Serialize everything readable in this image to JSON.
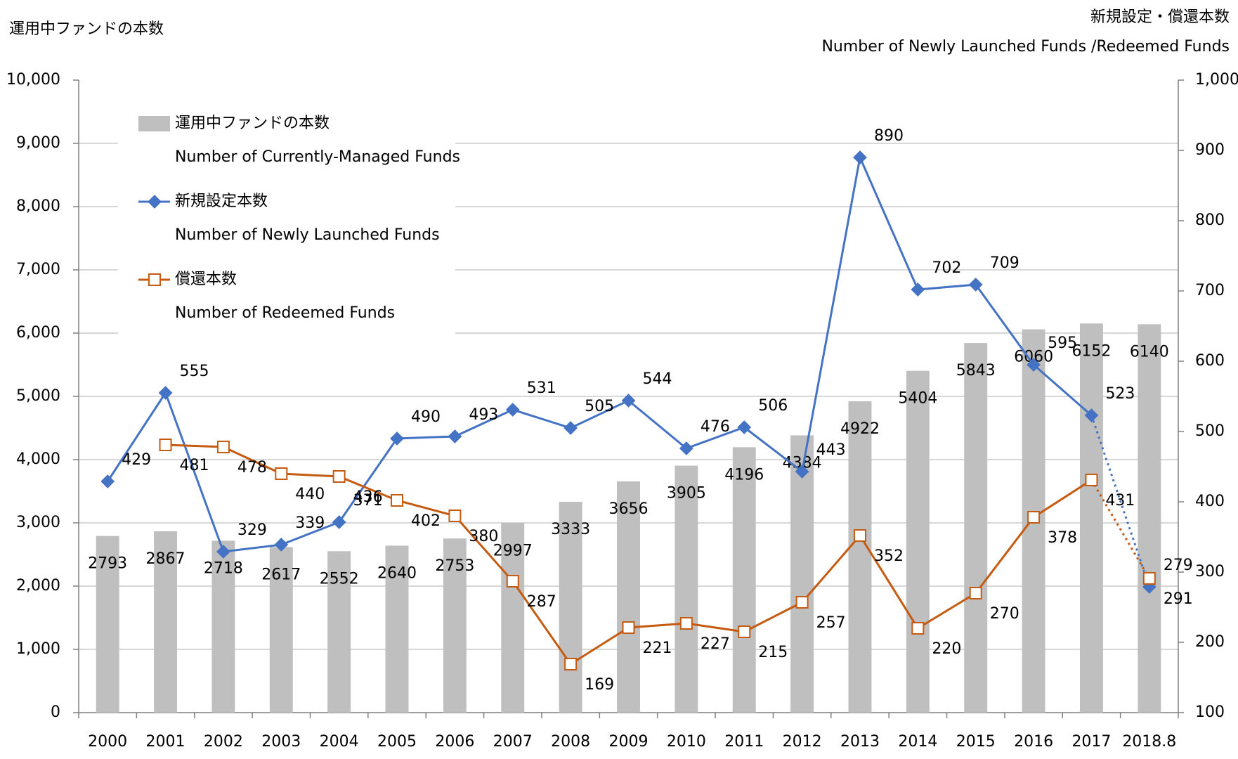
{
  "chart_data": {
    "type": "bar_line",
    "y_label": "運用中ファンドの本数",
    "y2_label": "新規設定・償還本数",
    "y2_label_en": "Number of Newly Launched Funds /Redeemed Funds",
    "categories": [
      "2000",
      "2001",
      "2002",
      "2003",
      "2004",
      "2005",
      "2006",
      "2007",
      "2008",
      "2009",
      "2010",
      "2011",
      "2012",
      "2013",
      "2014",
      "2015",
      "2016",
      "2017",
      "2018.8"
    ],
    "ylim": [
      0,
      10000
    ],
    "yticks": [
      0,
      {
        "value": 1000,
        "label": "1,000"
      },
      {
        "value": 2000,
        "label": "2,000"
      },
      {
        "value": 3000,
        "label": "3,000"
      },
      {
        "value": 4000,
        "label": "4,000"
      },
      {
        "value": 5000,
        "label": "5,000"
      },
      {
        "value": 6000,
        "label": "6,000"
      },
      {
        "value": 7000,
        "label": "7,000"
      },
      {
        "value": 8000,
        "label": "8,000"
      },
      {
        "value": 9000,
        "label": "9,000"
      },
      {
        "value": 10000,
        "label": "10,000"
      }
    ],
    "y2lim": [
      100,
      1000
    ],
    "y2ticks": [
      100,
      200,
      300,
      400,
      500,
      600,
      700,
      800,
      900,
      {
        "value": 1000,
        "label": "1,000"
      }
    ],
    "grid": true,
    "series": [
      {
        "name": "運用中ファンドの本数",
        "name_en": "Number of Currently-Managed Funds",
        "type": "bar",
        "color": "#bfbfbf",
        "values": [
          2793,
          2867,
          2718,
          2617,
          2552,
          2640,
          2753,
          2997,
          3333,
          3656,
          3905,
          4196,
          4384,
          4922,
          5404,
          5843,
          6060,
          6152,
          6140
        ]
      },
      {
        "name": "新規設定本数",
        "name_en": "Number of Newly Launched Funds",
        "type": "line",
        "marker": "diamond",
        "axis": "y2",
        "color": "#4472c4",
        "dotted_last": true,
        "values": [
          429,
          555,
          329,
          339,
          371,
          490,
          493,
          531,
          505,
          544,
          476,
          506,
          443,
          890,
          702,
          709,
          595,
          523,
          279
        ]
      },
      {
        "name": "償還本数",
        "name_en": "Number of Redeemed  Funds",
        "type": "line",
        "marker": "square",
        "axis": "y2",
        "color": "#c55a11",
        "dotted_last": true,
        "values": [
          null,
          481,
          478,
          440,
          436,
          402,
          380,
          287,
          169,
          221,
          227,
          215,
          257,
          352,
          220,
          270,
          378,
          431,
          291
        ]
      }
    ]
  }
}
